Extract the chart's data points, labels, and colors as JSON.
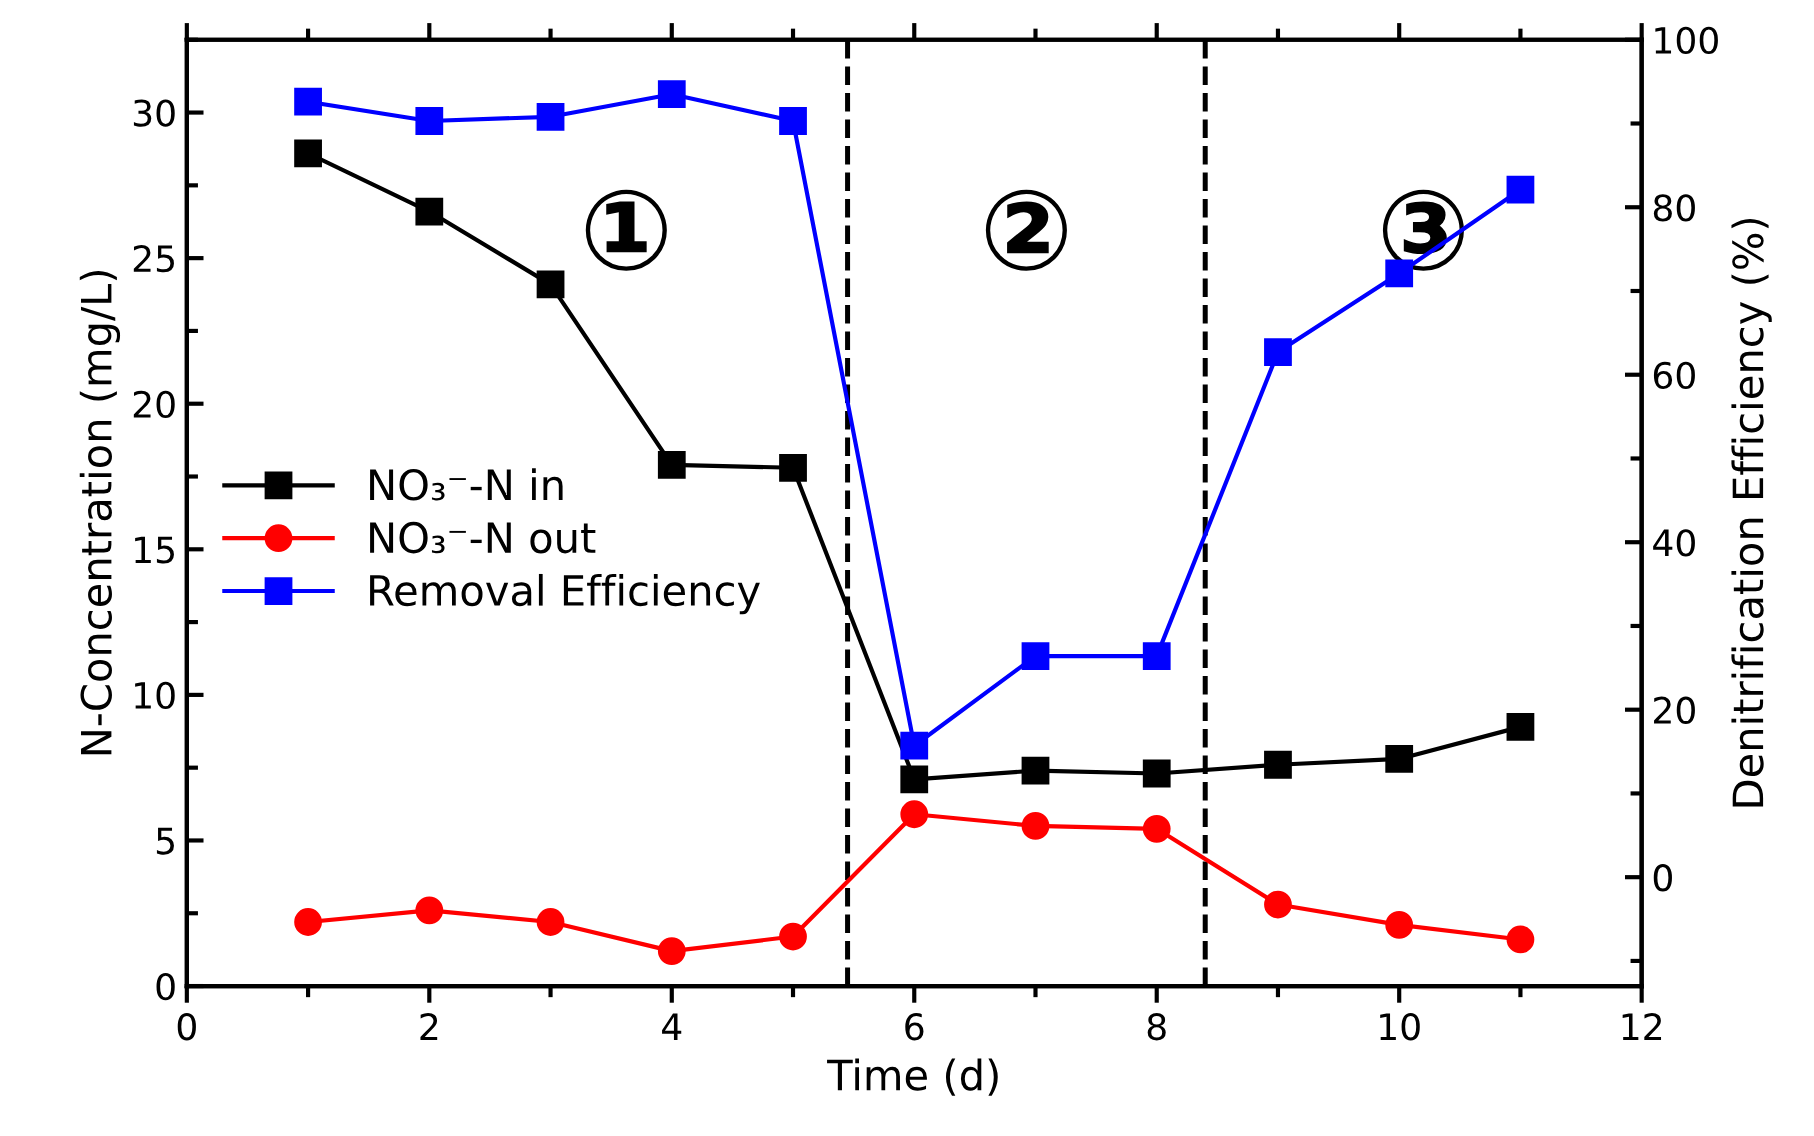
{
  "chart_data": {
    "type": "line",
    "xlabel": "Time (d)",
    "ylabel": "N-Concentration (mg/L)",
    "y2label": "Denitrification Efficiency (%)",
    "x": [
      1,
      2,
      3,
      4,
      5,
      6,
      7,
      8,
      9,
      10,
      11
    ],
    "series": [
      {
        "name": "NO₃⁻-N in",
        "color": "#000000",
        "marker": "square",
        "values": [
          28.6,
          26.6,
          24.1,
          17.9,
          17.8,
          7.1,
          7.4,
          7.3,
          7.6,
          7.8,
          8.9
        ]
      },
      {
        "name": "NO₃⁻-N out",
        "color": "#ff0000",
        "marker": "circle",
        "values": [
          2.2,
          2.6,
          2.2,
          1.2,
          1.7,
          5.9,
          5.5,
          5.4,
          2.8,
          2.1,
          1.6
        ]
      },
      {
        "name": "Removal Efficiency",
        "color": "#0000ff",
        "marker": "square",
        "axis": "y2",
        "values": [
          92.6,
          90.3,
          90.8,
          93.5,
          90.3,
          15.7,
          26.4,
          26.4,
          62.7,
          72.1,
          82.1
        ]
      }
    ],
    "xlim": [
      0,
      12
    ],
    "xticks": [
      0,
      2,
      4,
      6,
      8,
      10,
      12
    ],
    "ylim": [
      0,
      32.5
    ],
    "yticks": [
      0,
      5,
      10,
      15,
      20,
      25,
      30
    ],
    "y2lim": [
      -13,
      100
    ],
    "y2ticks": [
      0,
      20,
      40,
      60,
      80,
      100
    ],
    "ref_lines": [
      {
        "axis": "x",
        "value": 5.45,
        "color": "#000000",
        "line_style": "dashed"
      },
      {
        "axis": "x",
        "value": 8.4,
        "color": "#000000",
        "line_style": "dashed"
      }
    ],
    "annotations": [
      "①",
      "②",
      "③"
    ],
    "legend": "center left",
    "grid": false,
    "line_style": "solid"
  }
}
